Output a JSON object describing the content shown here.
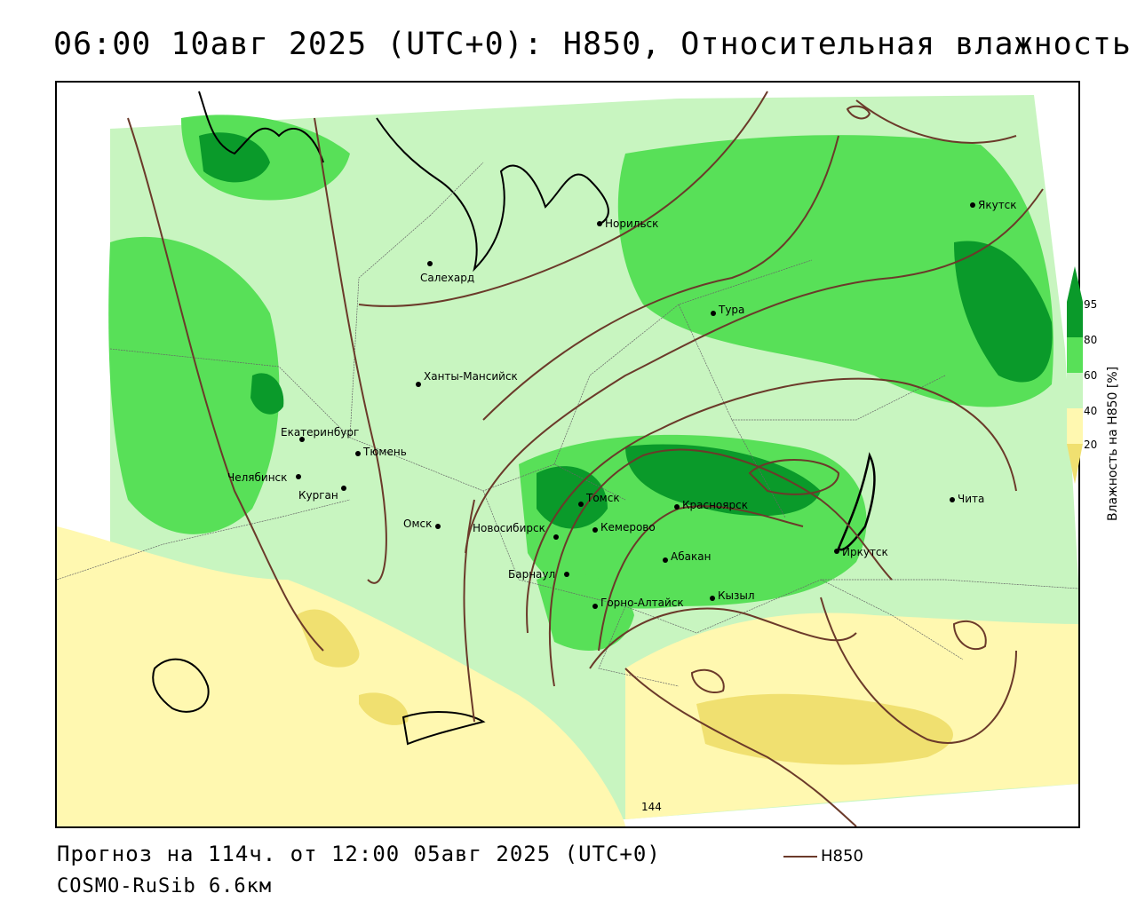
{
  "header": {
    "title": "06:00 10авг 2025 (UTC+0): H850, Относительная влажность"
  },
  "map": {
    "colors": {
      "rh_20": "#f0e070",
      "rh_40": "#fff8b0",
      "rh_60": "#c8f5c0",
      "rh_80": "#58e058",
      "rh_95": "#0a9a2a",
      "contour": "#6b3a2a",
      "border": "#000000"
    },
    "cities": [
      {
        "name": "Норильск"
      },
      {
        "name": "Якутск"
      },
      {
        "name": "Салехард"
      },
      {
        "name": "Тура"
      },
      {
        "name": "Ханты-Мансийск"
      },
      {
        "name": "Екатеринбург"
      },
      {
        "name": "Тюмень"
      },
      {
        "name": "Челябинск"
      },
      {
        "name": "Курган"
      },
      {
        "name": "Омск"
      },
      {
        "name": "Томск"
      },
      {
        "name": "Красноярск"
      },
      {
        "name": "Новосибирск"
      },
      {
        "name": "Кемерово"
      },
      {
        "name": "Барнаул"
      },
      {
        "name": "Абакан"
      },
      {
        "name": "Иркутск"
      },
      {
        "name": "Чита"
      },
      {
        "name": "Кызыл"
      },
      {
        "name": "Горно-Алтайск"
      }
    ],
    "contour_label": "144"
  },
  "legend": {
    "ticks": [
      "95",
      "80",
      "60",
      "40",
      "20"
    ],
    "axis_label": "Влажность на H850 [%]"
  },
  "footer": {
    "forecast": "Прогноз на 114ч. от 12:00 05авг 2025 (UTC+0)",
    "model": "COSMO-RuSib 6.6км",
    "line_legend": "H850"
  }
}
